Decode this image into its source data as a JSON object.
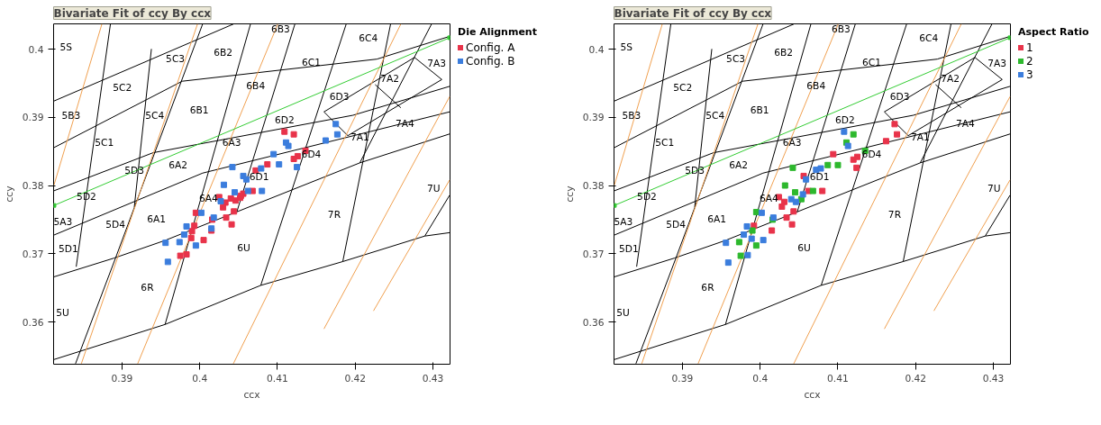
{
  "chart_data": [
    {
      "type": "scatter",
      "title": "Bivariate Fit of ccy By ccx",
      "xlabel": "ccx",
      "ylabel": "ccy",
      "legend_title": "Die Alignment",
      "legend": "right",
      "marker": "square",
      "grid": false,
      "xlim": [
        0.3812,
        0.4322
      ],
      "ylim": [
        0.3538,
        0.4037
      ],
      "xticks": [
        0.39,
        0.4,
        0.41,
        0.42,
        0.43
      ],
      "yticks": [
        0.36,
        0.37,
        0.38,
        0.39,
        0.4
      ],
      "series": [
        {
          "type": "line",
          "marker": "none",
          "color": "#000000",
          "x": [
            0.38125,
            0.40433,
            null,
            0.38125,
            0.39774,
            0.42279,
            0.43215,
            null,
            0.38125,
            0.394,
            0.41971,
            0.43215,
            null,
            0.38125,
            0.40037,
            0.43215,
            null,
            0.38125,
            0.38895,
            0.39554,
            0.42059,
            0.43215,
            null,
            0.38125,
            0.39554,
            0.40785,
            0.4184,
            0.42895,
            0.43215,
            null,
            0.38402,
            0.38916,
            0.40037,
            null,
            0.38411,
            0.38851,
            null,
            0.39158,
            0.39378,
            null,
            0.39554,
            0.40653,
            null,
            0.40477,
            0.41224,
            null,
            0.40785,
            0.41884,
            null,
            0.4184,
            0.42455,
            null,
            0.42059,
            0.42982,
            null,
            0.42895,
            0.43215,
            null,
            0.41598,
            0.41905,
            0.43114,
            null,
            0.41598,
            0.42763,
            0.43114,
            null,
            0.42257,
            0.42587
          ],
          "values": [
            0.39239,
            0.40367,
            null,
            0.38556,
            0.39529,
            0.39853,
            0.40187,
            null,
            0.37923,
            0.38481,
            0.3903,
            0.39454,
            null,
            0.37274,
            0.38182,
            0.3908,
            null,
            0.36661,
            0.36935,
            0.37195,
            0.38332,
            0.38756,
            null,
            0.35449,
            0.35963,
            0.36536,
            0.36885,
            0.37259,
            0.37309,
            null,
            0.35389,
            0.36935,
            0.40367,
            null,
            0.3681,
            0.40367,
            null,
            0.37683,
            0.40002,
            null,
            0.35963,
            0.40367,
            null,
            0.37613,
            0.40367,
            null,
            0.36536,
            0.40367,
            null,
            0.36885,
            0.40367,
            null,
            0.38332,
            0.40367,
            null,
            0.37259,
            0.37858,
            null,
            0.3908,
            0.38731,
            0.39554,
            null,
            0.3908,
            0.39878,
            0.39554,
            null,
            0.39479,
            0.3914
          ]
        },
        {
          "type": "line",
          "marker": "none",
          "color": "#f0a050",
          "x": [
            0.38125,
            0.38741,
            null,
            0.38477,
            0.39971,
            null,
            0.39202,
            0.41004,
            null,
            0.40433,
            0.42587,
            null,
            0.41598,
            0.43215,
            null,
            0.42235,
            0.43215
          ],
          "values": [
            0.38007,
            0.40367,
            null,
            0.35389,
            0.40367,
            null,
            0.35389,
            0.40367,
            null,
            0.35389,
            0.40367,
            null,
            0.35898,
            0.39304,
            null,
            0.36162,
            0.38082
          ]
        },
        {
          "type": "line",
          "color": "#33cc33",
          "x": [
            0.38125,
            0.43215
          ],
          "values": [
            0.37708,
            0.40167
          ]
        },
        {
          "name": "Config. A",
          "color": "#e8334a",
          "x": [
            0.4109,
            0.4121,
            0.4136,
            0.4126,
            0.4121,
            0.4087,
            0.4072,
            0.4068,
            0.4056,
            0.4053,
            0.4052,
            0.4046,
            0.404,
            0.4033,
            0.403,
            0.4025,
            0.4044,
            0.4034,
            0.4041,
            0.4016,
            0.4015,
            0.4005,
            0.3995,
            0.3993,
            0.399,
            0.3989,
            0.3983,
            0.3975
          ],
          "values": [
            0.3879,
            0.3875,
            0.3851,
            0.3843,
            0.3839,
            0.3831,
            0.3822,
            0.3792,
            0.3788,
            0.3785,
            0.3782,
            0.3778,
            0.3781,
            0.3775,
            0.3768,
            0.3783,
            0.3762,
            0.3753,
            0.3743,
            0.375,
            0.3734,
            0.372,
            0.376,
            0.3741,
            0.3733,
            0.3723,
            0.3699,
            0.3697
          ]
        },
        {
          "name": "Config. B",
          "color": "#3b7ddd",
          "x": [
            0.4175,
            0.4177,
            0.4162,
            0.4111,
            0.4114,
            0.4095,
            0.4102,
            0.4125,
            0.4079,
            0.4042,
            0.4056,
            0.406,
            0.4031,
            0.4062,
            0.408,
            0.4045,
            0.4027,
            0.4002,
            0.4018,
            0.3983,
            0.4015,
            0.398,
            0.3974,
            0.3956,
            0.3995,
            0.3959
          ],
          "values": [
            0.389,
            0.3875,
            0.3866,
            0.3863,
            0.3858,
            0.3846,
            0.3831,
            0.3827,
            0.3825,
            0.3827,
            0.3814,
            0.3809,
            0.3801,
            0.3792,
            0.3792,
            0.379,
            0.3777,
            0.376,
            0.3753,
            0.374,
            0.3737,
            0.3728,
            0.3717,
            0.3716,
            0.3712,
            0.3688
          ]
        }
      ],
      "annotations": [
        "5S",
        "5C3",
        "6B2",
        "6B3",
        "6C4",
        "6C1",
        "7A3",
        "7A2",
        "5C2",
        "6B4",
        "6D3",
        "5B3",
        "5C4",
        "6B1",
        "6D2",
        "7A4",
        "5C1",
        "6A3",
        "7A1",
        "6D4",
        "5D3",
        "6A2",
        "6D1",
        "7U",
        "5D2",
        "6A4",
        "5A3",
        "6A1",
        "5D4",
        "7R",
        "5D1",
        "6U",
        "6R",
        "5U"
      ]
    },
    {
      "type": "scatter",
      "title": "Bivariate Fit of ccy By ccx",
      "xlabel": "ccx",
      "ylabel": "ccy",
      "legend_title": "Aspect Ratio",
      "legend": "right",
      "marker": "square",
      "grid": false,
      "xlim": [
        0.3812,
        0.4322
      ],
      "ylim": [
        0.3538,
        0.4037
      ],
      "xticks": [
        0.39,
        0.4,
        0.41,
        0.42,
        0.43
      ],
      "yticks": [
        0.36,
        0.37,
        0.38,
        0.39,
        0.4
      ],
      "series": [
        {
          "type": "line",
          "marker": "none",
          "color": "#000000",
          "x": [
            0.38125,
            0.40433,
            null,
            0.38125,
            0.39774,
            0.42279,
            0.43215,
            null,
            0.38125,
            0.394,
            0.41971,
            0.43215,
            null,
            0.38125,
            0.40037,
            0.43215,
            null,
            0.38125,
            0.38895,
            0.39554,
            0.42059,
            0.43215,
            null,
            0.38125,
            0.39554,
            0.40785,
            0.4184,
            0.42895,
            0.43215,
            null,
            0.38402,
            0.38916,
            0.40037,
            null,
            0.38411,
            0.38851,
            null,
            0.39158,
            0.39378,
            null,
            0.39554,
            0.40653,
            null,
            0.40477,
            0.41224,
            null,
            0.40785,
            0.41884,
            null,
            0.4184,
            0.42455,
            null,
            0.42059,
            0.42982,
            null,
            0.42895,
            0.43215,
            null,
            0.41598,
            0.41905,
            0.43114,
            null,
            0.41598,
            0.42763,
            0.43114,
            null,
            0.42257,
            0.42587
          ],
          "values": [
            0.39239,
            0.40367,
            null,
            0.38556,
            0.39529,
            0.39853,
            0.40187,
            null,
            0.37923,
            0.38481,
            0.3903,
            0.39454,
            null,
            0.37274,
            0.38182,
            0.3908,
            null,
            0.36661,
            0.36935,
            0.37195,
            0.38332,
            0.38756,
            null,
            0.35449,
            0.35963,
            0.36536,
            0.36885,
            0.37259,
            0.37309,
            null,
            0.35389,
            0.36935,
            0.40367,
            null,
            0.3681,
            0.40367,
            null,
            0.37683,
            0.40002,
            null,
            0.35963,
            0.40367,
            null,
            0.37613,
            0.40367,
            null,
            0.36536,
            0.40367,
            null,
            0.36885,
            0.40367,
            null,
            0.38332,
            0.40367,
            null,
            0.37259,
            0.37858,
            null,
            0.3908,
            0.38731,
            0.39554,
            null,
            0.3908,
            0.39878,
            0.39554,
            null,
            0.39479,
            0.3914
          ]
        },
        {
          "type": "line",
          "marker": "none",
          "color": "#f0a050",
          "x": [
            0.38125,
            0.38741,
            null,
            0.38477,
            0.39971,
            null,
            0.39202,
            0.41004,
            null,
            0.40433,
            0.42587,
            null,
            0.41598,
            0.43215,
            null,
            0.42235,
            0.43215
          ],
          "values": [
            0.38007,
            0.40367,
            null,
            0.35389,
            0.40367,
            null,
            0.35389,
            0.40367,
            null,
            0.35389,
            0.40367,
            null,
            0.35898,
            0.39304,
            null,
            0.36162,
            0.38082
          ]
        },
        {
          "type": "line",
          "color": "#33cc33",
          "x": [
            0.38125,
            0.43215
          ],
          "values": [
            0.37708,
            0.40167
          ]
        },
        {
          "name": "1",
          "color": "#e8334a",
          "x": [
            0.4173,
            0.4176,
            0.4162,
            0.4094,
            0.412,
            0.4125,
            0.4124,
            0.4056,
            0.408,
            0.4062,
            0.4024,
            0.4031,
            0.4028,
            0.4043,
            0.4034,
            0.4041,
            0.4015,
            0.3992
          ],
          "values": [
            0.389,
            0.3875,
            0.3865,
            0.3846,
            0.3838,
            0.3842,
            0.3826,
            0.3814,
            0.3792,
            0.3792,
            0.3783,
            0.3776,
            0.3769,
            0.3762,
            0.3753,
            0.3743,
            0.3734,
            0.3741
          ]
        },
        {
          "name": "2",
          "color": "#2db82d",
          "x": [
            0.412,
            0.4111,
            0.4135,
            0.4087,
            0.41,
            0.4042,
            0.4032,
            0.4045,
            0.4068,
            0.4053,
            0.3995,
            0.4016,
            0.399,
            0.3973,
            0.3995,
            0.3975
          ],
          "values": [
            0.3875,
            0.3863,
            0.3851,
            0.383,
            0.383,
            0.3826,
            0.38,
            0.379,
            0.3792,
            0.378,
            0.3761,
            0.375,
            0.3734,
            0.3717,
            0.3712,
            0.3697
          ]
        },
        {
          "name": "3",
          "color": "#3b7ddd",
          "x": [
            0.4108,
            0.4113,
            0.4072,
            0.4078,
            0.4059,
            0.404,
            0.4046,
            0.4055,
            0.4002,
            0.4017,
            0.3983,
            0.3979,
            0.3989,
            0.4004,
            0.3956,
            0.3984,
            0.3959
          ],
          "values": [
            0.3879,
            0.3858,
            0.3823,
            0.3825,
            0.3809,
            0.378,
            0.3776,
            0.3787,
            0.376,
            0.3753,
            0.374,
            0.3728,
            0.3722,
            0.372,
            0.3716,
            0.3698,
            0.3687
          ]
        }
      ],
      "annotations": [
        "5S",
        "5C3",
        "6B2",
        "6B3",
        "6C4",
        "6C1",
        "7A3",
        "7A2",
        "5C2",
        "6B4",
        "6D3",
        "5B3",
        "5C4",
        "6B1",
        "6D2",
        "7A4",
        "5C1",
        "6A3",
        "7A1",
        "6D4",
        "5D3",
        "6A2",
        "6D1",
        "7U",
        "5D2",
        "6A4",
        "5A3",
        "6A1",
        "5D4",
        "7R",
        "5D1",
        "6U",
        "6R",
        "5U"
      ]
    }
  ]
}
